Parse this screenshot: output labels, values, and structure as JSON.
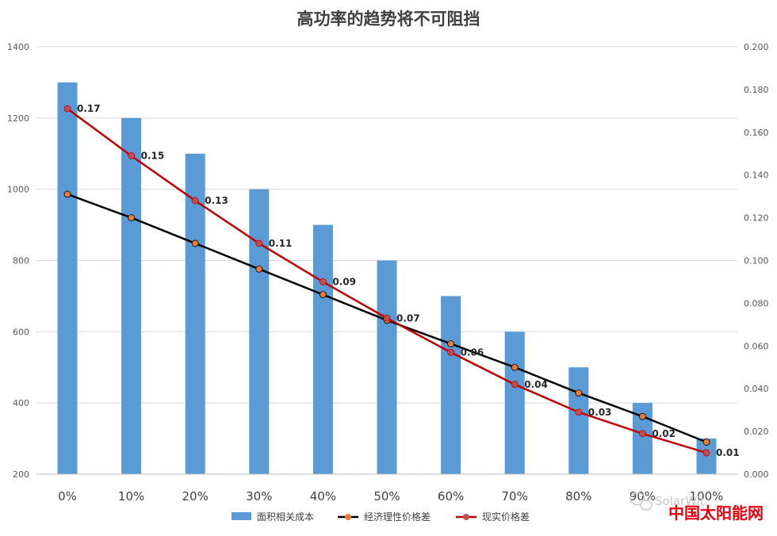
{
  "chart_data": {
    "type": "bar",
    "title": "高功率的趋势将不可阻挡",
    "categories": [
      "0%",
      "10%",
      "20%",
      "30%",
      "40%",
      "50%",
      "60%",
      "70%",
      "80%",
      "90%",
      "100%"
    ],
    "y_left": {
      "ylim": [
        200,
        1400
      ],
      "ticks": [
        "200",
        "400",
        "600",
        "800",
        "1000",
        "1200",
        "1400"
      ]
    },
    "y_right": {
      "ylim": [
        0,
        0.2
      ],
      "ticks": [
        "0.000",
        "0.020",
        "0.040",
        "0.060",
        "0.080",
        "0.100",
        "0.120",
        "0.140",
        "0.160",
        "0.180",
        "0.200"
      ]
    },
    "grid": true,
    "legend_position": "bottom",
    "series": [
      {
        "name": "面积相关成本",
        "type": "bar",
        "axis": "left",
        "color": "#5b9bd5",
        "values": [
          1300,
          1200,
          1100,
          1000,
          900,
          800,
          700,
          600,
          500,
          400,
          300
        ]
      },
      {
        "name": "经济理性价格差",
        "type": "line",
        "axis": "right",
        "color": "#000000",
        "marker_color": "#ed7d31",
        "values": [
          0.131,
          0.12,
          0.108,
          0.096,
          0.084,
          0.072,
          0.061,
          0.05,
          0.038,
          0.027,
          0.015
        ]
      },
      {
        "name": "现实价格差",
        "type": "line",
        "axis": "right",
        "color": "#c00000",
        "marker_color": "#c0504d",
        "values": [
          0.171,
          0.149,
          0.128,
          0.108,
          0.09,
          0.073,
          0.057,
          0.042,
          0.029,
          0.019,
          0.01
        ],
        "data_labels": [
          "0.17",
          "0.15",
          "0.13",
          "0.11",
          "0.09",
          "0.07",
          "0.06",
          "0.04",
          "0.03",
          "0.02",
          "0.01"
        ]
      }
    ]
  },
  "watermark": {
    "text": "SolarWit",
    "brand": "中国太阳能网",
    "brand_color": "#e60012",
    "icon": "wechat-icon"
  }
}
